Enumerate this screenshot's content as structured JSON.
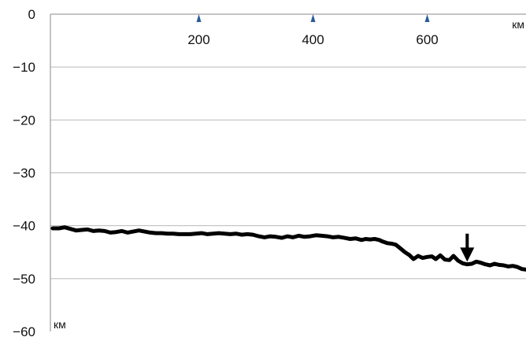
{
  "chart_data": {
    "type": "line",
    "title": "",
    "x_unit": "км",
    "y_unit": "км",
    "xlim": [
      -60,
      773
    ],
    "ylim": [
      -60,
      0
    ],
    "y_ticks": [
      {
        "value": 0,
        "label": "0"
      },
      {
        "value": -10,
        "label": "−10"
      },
      {
        "value": -20,
        "label": "−20"
      },
      {
        "value": -30,
        "label": "−30"
      },
      {
        "value": -40,
        "label": "−40"
      },
      {
        "value": -50,
        "label": "−50"
      },
      {
        "value": -60,
        "label": "−60"
      }
    ],
    "x_markers": [
      {
        "value": 200,
        "label": "200"
      },
      {
        "value": 400,
        "label": "400"
      },
      {
        "value": 600,
        "label": "600"
      }
    ],
    "marker_color": "#2a5b9a",
    "grid": true,
    "series": [
      {
        "x": [
          -56,
          -45,
          -35,
          -25,
          -15,
          -5,
          5,
          15,
          25,
          35,
          45,
          55,
          65,
          75,
          85,
          95,
          105,
          115,
          125,
          135,
          145,
          155,
          165,
          175,
          185,
          195,
          205,
          215,
          225,
          235,
          245,
          255,
          265,
          275,
          285,
          295,
          305,
          315,
          325,
          335,
          345,
          355,
          365,
          375,
          385,
          395,
          405,
          415,
          425,
          435,
          445,
          455,
          465,
          475,
          485,
          492,
          500,
          508,
          516,
          522,
          530,
          538,
          545,
          553,
          561,
          568,
          576,
          584,
          592,
          600,
          608,
          615,
          623,
          631,
          639,
          646,
          654,
          662,
          670,
          678,
          686,
          694,
          702,
          710,
          718,
          726,
          734,
          742,
          750,
          758,
          766,
          773
        ],
        "y": [
          -40.5,
          -40.5,
          -40.3,
          -40.6,
          -40.9,
          -40.8,
          -40.7,
          -41.0,
          -40.9,
          -41.0,
          -41.3,
          -41.2,
          -41.0,
          -41.3,
          -41.1,
          -40.9,
          -41.1,
          -41.3,
          -41.4,
          -41.4,
          -41.5,
          -41.5,
          -41.6,
          -41.6,
          -41.6,
          -41.5,
          -41.4,
          -41.6,
          -41.5,
          -41.4,
          -41.5,
          -41.6,
          -41.5,
          -41.7,
          -41.6,
          -41.7,
          -42.0,
          -42.2,
          -42.0,
          -42.1,
          -42.3,
          -42.0,
          -42.2,
          -41.9,
          -42.1,
          -42.0,
          -41.8,
          -41.9,
          -42.0,
          -42.2,
          -42.1,
          -42.3,
          -42.5,
          -42.4,
          -42.7,
          -42.5,
          -42.6,
          -42.5,
          -42.7,
          -43.0,
          -43.3,
          -43.4,
          -43.6,
          -44.3,
          -45.0,
          -45.5,
          -46.3,
          -45.7,
          -46.1,
          -45.9,
          -45.8,
          -46.3,
          -45.6,
          -46.4,
          -46.5,
          -45.7,
          -46.6,
          -47.1,
          -47.3,
          -47.2,
          -46.8,
          -47.0,
          -47.3,
          -47.5,
          -47.2,
          -47.4,
          -47.5,
          -47.7,
          -47.6,
          -47.8,
          -48.2,
          -48.3
        ]
      }
    ],
    "annotations": [
      {
        "type": "arrow",
        "direction": "down",
        "x": 670,
        "y_from": -41.5,
        "y_to": -46.8
      }
    ]
  }
}
